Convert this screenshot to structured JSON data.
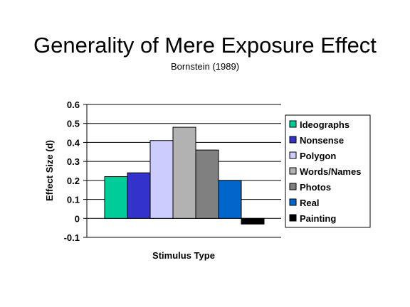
{
  "chart_data": {
    "type": "bar",
    "title": "Generality of Mere Exposure Effect",
    "subtitle": "Bornstein (1989)",
    "xlabel": "Stimulus Type",
    "ylabel": "Effect Size (d)",
    "ylim": [
      -0.1,
      0.6
    ],
    "yticks": [
      "0.6",
      "0.5",
      "0.4",
      "0.3",
      "0.2",
      "0.1",
      "0",
      "-0.1"
    ],
    "ytick_values": [
      0.6,
      0.5,
      0.4,
      0.3,
      0.2,
      0.1,
      0,
      -0.1
    ],
    "grid": true,
    "legend_position": "right",
    "series": [
      {
        "name": "Ideographs",
        "value": 0.22,
        "color": "#00cc99"
      },
      {
        "name": "Nonsense",
        "value": 0.24,
        "color": "#3333cc"
      },
      {
        "name": "Polygon",
        "value": 0.41,
        "color": "#ccccff"
      },
      {
        "name": "Words/Names",
        "value": 0.48,
        "color": "#b2b2b2"
      },
      {
        "name": "Photos",
        "value": 0.36,
        "color": "#808080"
      },
      {
        "name": "Real",
        "value": 0.2,
        "color": "#0066cc"
      },
      {
        "name": "Painting",
        "value": -0.03,
        "color": "#000000"
      }
    ]
  }
}
